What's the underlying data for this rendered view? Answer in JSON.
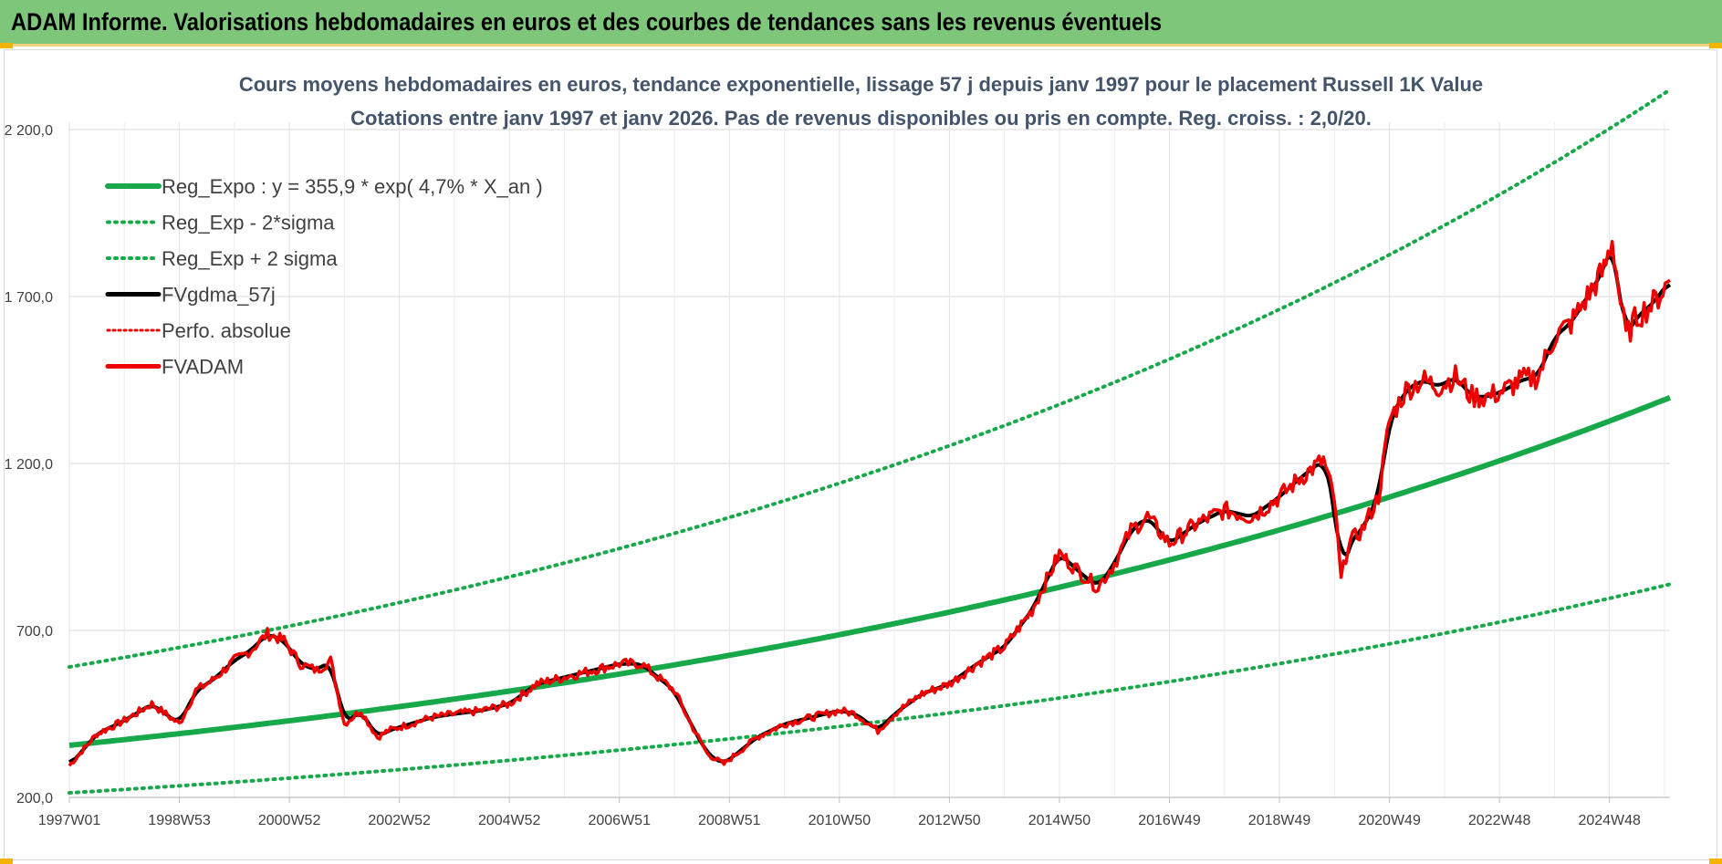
{
  "banner": {
    "title": "ADAM Informe. Valorisations hebdomadaires en euros et des courbes de tendances sans les revenus éventuels"
  },
  "chart_data": {
    "type": "line",
    "title_line1": "Cours moyens hebdomadaires en euros, tendance exponentielle, lissage 57 j depuis janv 1997 pour le placement Russell 1K Value",
    "title_line2": "Cotations entre janv 1997 et janv 2026. Pas de revenus disponibles ou pris en compte. Reg. croiss. : 2,0/20.",
    "y_ticks": [
      "200,0",
      "700,0",
      "1 200,0",
      "1 700,0",
      "2 200,0"
    ],
    "y_tick_values": [
      200,
      700,
      1200,
      1700,
      2200
    ],
    "ylim": [
      200,
      2200
    ],
    "x_ticks": [
      "1997W01",
      "1998W53",
      "2000W52",
      "2002W52",
      "2004W52",
      "2006W51",
      "2008W51",
      "2010W50",
      "2012W50",
      "2014W50",
      "2016W49",
      "2018W49",
      "2020W49",
      "2022W48",
      "2024W48"
    ],
    "x_tick_years": [
      1997.0,
      1999.0,
      2001.0,
      2003.0,
      2005.0,
      2007.0,
      2009.0,
      2011.0,
      2013.0,
      2015.0,
      2017.0,
      2019.0,
      2021.0,
      2023.0,
      2025.0
    ],
    "xlim": [
      1997.0,
      2026.1
    ],
    "grid": true,
    "legend_position": "top-left",
    "regression": {
      "a": 355.9,
      "rate": 0.047,
      "sigma_factor_low": 0.6,
      "sigma_factor_high": 1.66
    },
    "series": [
      {
        "name": "Reg_Expo : y = 355,9 * exp( 4,7% *  X_an )",
        "color": "#17a84a",
        "style": "solid-thick"
      },
      {
        "name": "Reg_Exp - 2*sigma",
        "color": "#17a84a",
        "style": "dotted"
      },
      {
        "name": "Reg_Exp + 2 sigma",
        "color": "#17a84a",
        "style": "dotted"
      },
      {
        "name": "FVgdma_57j",
        "color": "#000000",
        "style": "solid"
      },
      {
        "name": "Perfo. absolue",
        "color": "#ff0000",
        "style": "dotted"
      },
      {
        "name": "FVADAM",
        "color": "#ee0000",
        "style": "solid-thick",
        "x": [
          1997.0,
          1997.5,
          1998.0,
          1998.5,
          1998.75,
          1999.0,
          1999.3,
          1999.6,
          2000.0,
          2000.3,
          2000.6,
          2000.9,
          2001.2,
          2001.5,
          2001.75,
          2002.0,
          2002.3,
          2002.6,
          2002.8,
          2003.2,
          2003.6,
          2004.0,
          2004.5,
          2005.0,
          2005.5,
          2006.0,
          2006.5,
          2007.0,
          2007.4,
          2007.7,
          2008.0,
          2008.3,
          2008.6,
          2008.9,
          2009.2,
          2009.5,
          2010.0,
          2010.5,
          2011.0,
          2011.3,
          2011.7,
          2012.0,
          2012.5,
          2013.0,
          2013.5,
          2014.0,
          2014.5,
          2015.0,
          2015.4,
          2015.7,
          2016.0,
          2016.3,
          2016.6,
          2017.0,
          2017.5,
          2018.0,
          2018.5,
          2019.0,
          2019.4,
          2019.8,
          2020.0,
          2020.12,
          2020.25,
          2020.5,
          2020.8,
          2021.0,
          2021.3,
          2021.6,
          2021.9,
          2022.2,
          2022.5,
          2022.8,
          2023.1,
          2023.4,
          2023.7,
          2024.0,
          2024.3,
          2024.6,
          2024.9,
          2025.05,
          2025.2,
          2025.3,
          2025.5,
          2025.8,
          2026.1
        ],
        "y": [
          295,
          390,
          430,
          480,
          450,
          420,
          520,
          550,
          610,
          640,
          690,
          670,
          600,
          580,
          610,
          420,
          460,
          380,
          400,
          420,
          440,
          450,
          460,
          480,
          540,
          560,
          580,
          600,
          600,
          560,
          520,
          420,
          330,
          300,
          340,
          380,
          420,
          440,
          460,
          450,
          400,
          450,
          510,
          540,
          600,
          650,
          760,
          930,
          870,
          830,
          900,
          1000,
          1040,
          960,
          1020,
          1060,
          1040,
          1100,
          1160,
          1210,
          1090,
          850,
          960,
          1000,
          1100,
          1330,
          1420,
          1450,
          1430,
          1460,
          1400,
          1400,
          1420,
          1450,
          1460,
          1580,
          1620,
          1700,
          1780,
          1870,
          1680,
          1580,
          1640,
          1680,
          1750
        ]
      }
    ]
  }
}
